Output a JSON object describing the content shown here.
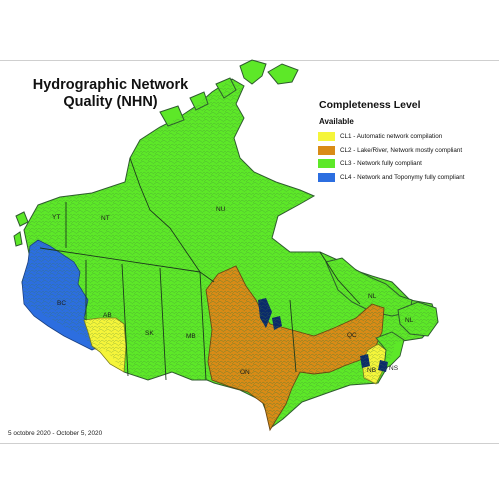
{
  "title": "Hydrographic Network Quality (NHN)",
  "legend": {
    "title": "Completeness Level",
    "subtitle": "Available",
    "items": [
      {
        "label": "CL1 - Automatic network compilation",
        "color": "#f5f53a"
      },
      {
        "label": "CL2 - Lake/River, Network mostly compliant",
        "color": "#d98b16"
      },
      {
        "label": "CL3 - Network fully compliant",
        "color": "#5de828"
      },
      {
        "label": "CL4 - Network and Toponymy fully compliant",
        "color": "#2c6ee0"
      }
    ]
  },
  "provinces": [
    "YT",
    "NT",
    "NU",
    "BC",
    "AB",
    "SK",
    "MB",
    "ON",
    "QC",
    "NL",
    "NL",
    "NB",
    "NS"
  ],
  "footnote": "5 octobre 2020 - October 5, 2020"
}
